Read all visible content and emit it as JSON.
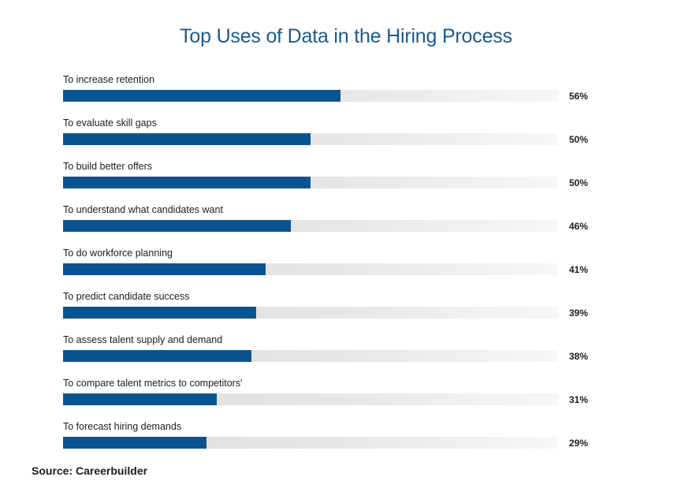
{
  "chart_data": {
    "type": "bar",
    "orientation": "horizontal",
    "title": "Top Uses of Data in the Hiring Process",
    "categories": [
      "To increase retention",
      "To evaluate skill gaps",
      "To build better offers",
      "To understand what candidates want",
      "To do workforce planning",
      "To predict candidate success",
      "To assess talent supply and demand",
      "To compare talent metrics to competitors'",
      "To forecast hiring demands"
    ],
    "values": [
      56,
      50,
      50,
      46,
      41,
      39,
      38,
      31,
      29
    ],
    "value_labels": [
      "56%",
      "50%",
      "50%",
      "46%",
      "41%",
      "39%",
      "38%",
      "31%",
      "29%"
    ],
    "xlim": [
      0,
      100
    ],
    "unit": "%",
    "grid": false,
    "colors": {
      "bar": "#0b5390",
      "track": "#e3e3e3",
      "title": "#1a5a8e"
    }
  },
  "source": "Source: Careerbuilder"
}
